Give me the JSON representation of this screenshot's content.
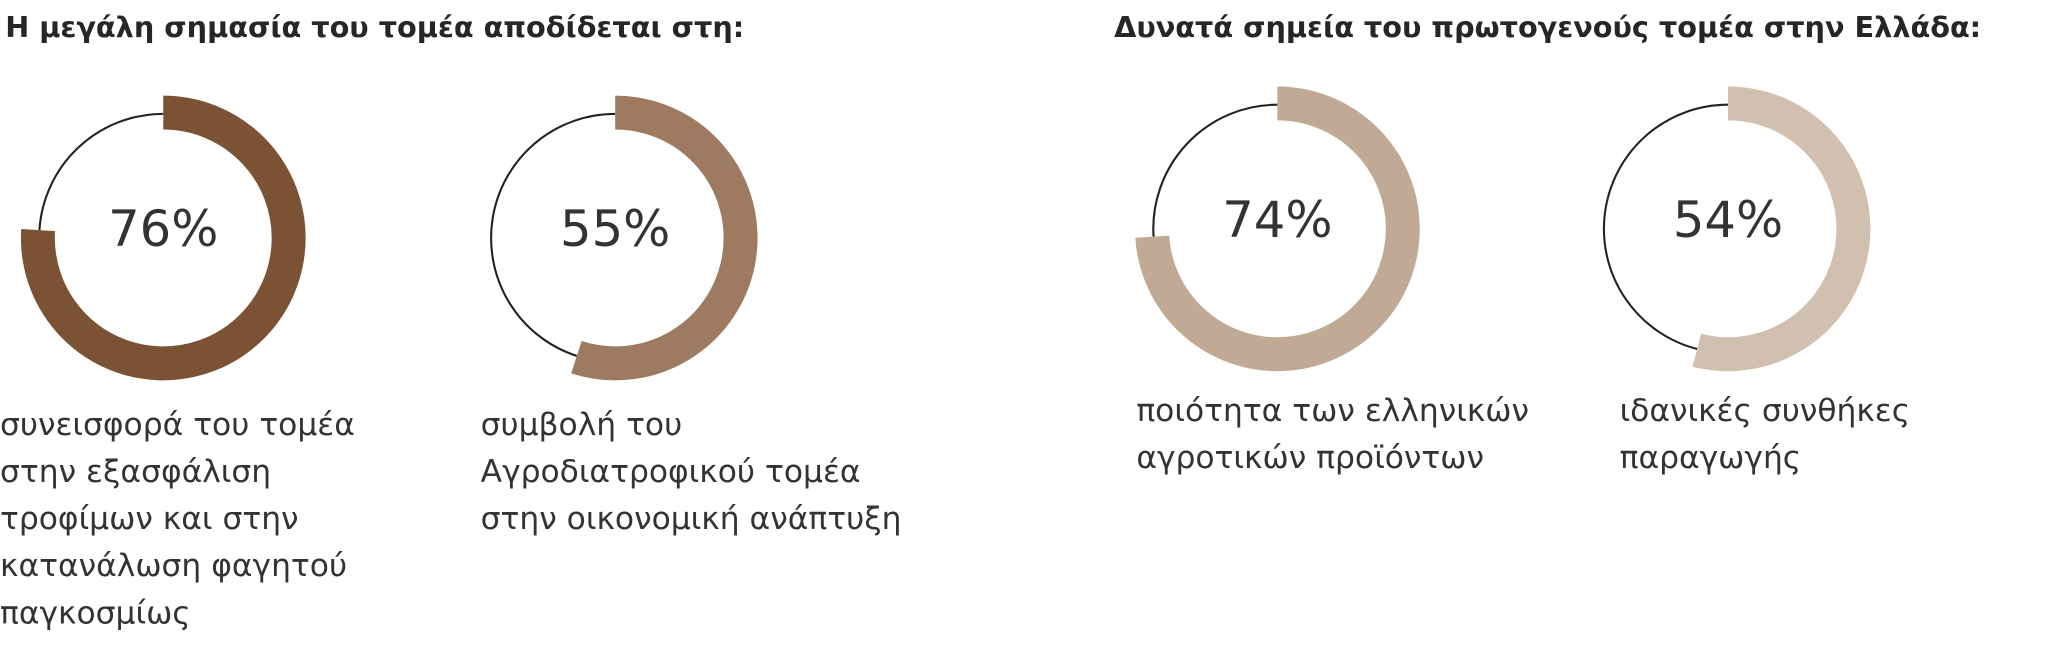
{
  "chart_data": [
    {
      "type": "donut",
      "title": "Η μεγάλη σημασία του τομέα αποδίδεται στη:",
      "categories": [
        [
          "συνεισφορά του τομέα",
          "στην εξασφάλιση",
          "τροφίμων και στην",
          "κατανάλωση φαγητού",
          "παγκοσμίως"
        ],
        [
          "συμβολή του",
          "Αγροδιατροφικού τομέα",
          "στην οικονομική ανάπτυξη"
        ]
      ],
      "values": [
        76,
        55
      ],
      "value_labels": [
        "76%",
        "55%"
      ],
      "colors": [
        "#7b5334",
        "#9d7a60"
      ]
    },
    {
      "type": "donut",
      "title": "Δυνατά σημεία του πρωτογενούς τομέα στην Ελλάδα:",
      "categories": [
        [
          "ποιότητα των ελληνικών",
          "αγροτικών προϊόντων"
        ],
        [
          "ιδανικές συνθήκες",
          "παραγωγής"
        ]
      ],
      "values": [
        74,
        54
      ],
      "value_labels": [
        "74%",
        "54%"
      ],
      "colors": [
        "#c0aa96",
        "#d1bfaf"
      ]
    }
  ]
}
